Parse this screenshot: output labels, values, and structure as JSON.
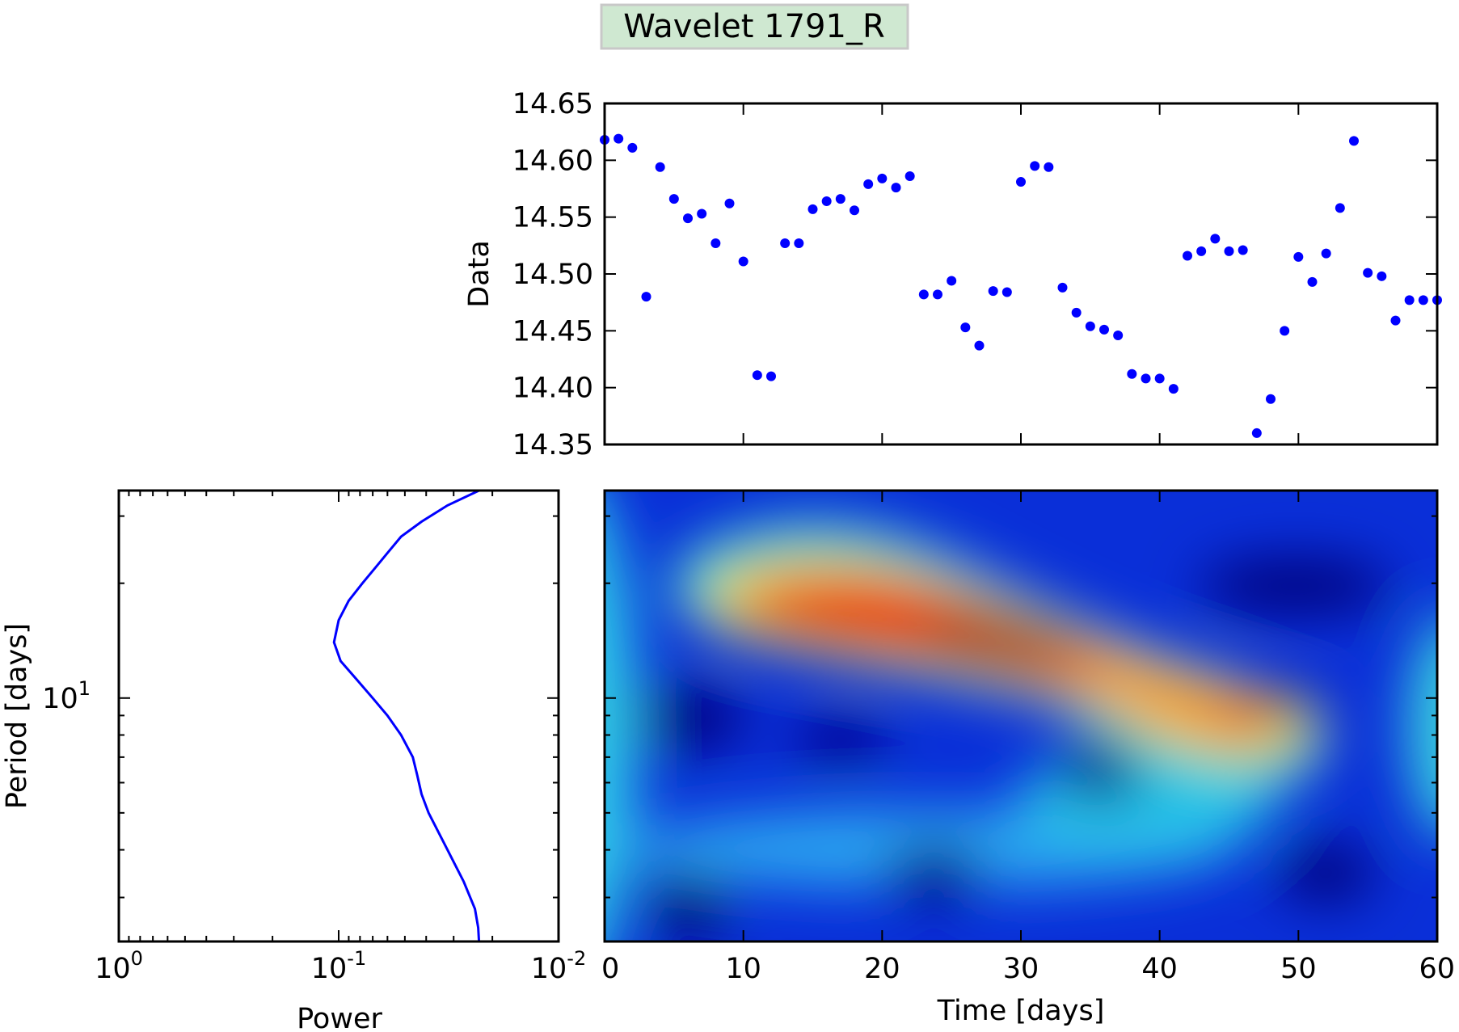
{
  "chart_data": {
    "title": "Wavelet 1791_R",
    "title_box_color": "#cfe8d1",
    "marker_color": "#0000ff",
    "panels": [
      {
        "name": "data-scatter",
        "type": "scatter",
        "xlim": [
          0,
          60
        ],
        "ylim": [
          14.35,
          14.65
        ],
        "ylabel": "Data",
        "xlabel": "",
        "ytick_labels": [
          "14.35",
          "14.40",
          "14.45",
          "14.50",
          "14.55",
          "14.60",
          "14.65"
        ],
        "yticks": [
          14.35,
          14.4,
          14.45,
          14.5,
          14.55,
          14.6,
          14.65
        ],
        "xticks": [
          0,
          10,
          20,
          30,
          40,
          50,
          60
        ],
        "x": [
          0,
          1,
          2,
          3,
          4,
          5,
          6,
          7,
          8,
          9,
          10,
          11,
          12,
          13,
          14,
          15,
          16,
          17,
          18,
          19,
          20,
          21,
          22,
          23,
          24,
          25,
          26,
          27,
          28,
          29,
          30,
          31,
          32,
          33,
          34,
          35,
          36,
          37,
          38,
          39,
          40,
          41,
          42,
          43,
          44,
          45,
          46,
          47,
          48,
          49,
          50,
          51,
          52,
          53,
          54,
          55,
          56,
          57,
          58,
          59,
          60
        ],
        "y": [
          14.618,
          14.619,
          14.611,
          14.48,
          14.594,
          14.566,
          14.549,
          14.553,
          14.527,
          14.562,
          14.511,
          14.411,
          14.41,
          14.527,
          14.527,
          14.557,
          14.564,
          14.566,
          14.556,
          14.579,
          14.584,
          14.576,
          14.586,
          14.482,
          14.482,
          14.494,
          14.453,
          14.437,
          14.485,
          14.484,
          14.581,
          14.595,
          14.594,
          14.488,
          14.466,
          14.454,
          14.451,
          14.446,
          14.412,
          14.408,
          14.408,
          14.399,
          14.516,
          14.52,
          14.531,
          14.52,
          14.521,
          14.36,
          14.39,
          14.45,
          14.515,
          14.493,
          14.518,
          14.558,
          14.617,
          14.501,
          14.498,
          14.459,
          14.477,
          14.477,
          14.477
        ]
      },
      {
        "name": "global-power",
        "type": "line",
        "xscale": "log",
        "xlim": [
          1.0,
          0.01
        ],
        "xtick_labels": [
          {
            "base": "10",
            "exp": "0",
            "value": 1.0
          },
          {
            "base": "10",
            "exp": "-1",
            "value": 0.1
          },
          {
            "base": "10",
            "exp": "-2",
            "value": 0.01
          }
        ],
        "xlabel": "Power",
        "ylabel": "Period [days]",
        "yscale": "log",
        "ylim": [
          2.3,
          35.0
        ],
        "ytick_labels": [
          {
            "base": "10",
            "exp": "1",
            "value": 10
          }
        ],
        "x": [
          0.23,
          0.232,
          0.24,
          0.27,
          0.32,
          0.39,
          0.42,
          0.44,
          0.46,
          0.52,
          0.6,
          0.7,
          0.83,
          0.98,
          1.05,
          1.0,
          0.9,
          0.78,
          0.68,
          0.6,
          0.52,
          0.42,
          0.32,
          0.23
        ],
        "y": [
          2.3,
          2.5,
          2.8,
          3.3,
          4.0,
          5.0,
          5.6,
          6.3,
          7.0,
          8.0,
          9.0,
          10.0,
          11.2,
          12.5,
          14.0,
          16.0,
          18.0,
          20.0,
          22.0,
          24.0,
          26.5,
          29.0,
          32.0,
          35.0
        ],
        "x_units": "0.1"
      },
      {
        "name": "wavelet-spectrum",
        "type": "heatmap",
        "xlim": [
          0,
          60
        ],
        "xlabel": "Time [days]",
        "xtick_labels": [
          "0",
          "10",
          "20",
          "30",
          "40",
          "50",
          "60"
        ],
        "xticks": [
          0,
          10,
          20,
          30,
          40,
          50,
          60
        ],
        "colormap": "jet",
        "features": [
          {
            "kind": "ridge",
            "from": [
              8,
              20.5
            ],
            "to": [
              40,
              14.0
            ],
            "peak": 1.0
          },
          {
            "kind": "peak",
            "at": [
              29,
              16.0
            ],
            "peak": 1.0
          },
          {
            "kind": "blob",
            "at": [
              48.5,
              9.5
            ],
            "peak": 0.82
          },
          {
            "kind": "low",
            "at": [
              49,
              21.0
            ]
          },
          {
            "kind": "low",
            "at": [
              6,
              9.5
            ]
          },
          {
            "kind": "low",
            "at": [
              17,
              8.5
            ]
          },
          {
            "kind": "low",
            "at": [
              36,
              7.3
            ]
          },
          {
            "kind": "low",
            "at": [
              6,
              2.6
            ]
          },
          {
            "kind": "low",
            "at": [
              24,
              3.3
            ]
          },
          {
            "kind": "low",
            "at": [
              52,
              3.3
            ]
          }
        ]
      }
    ]
  }
}
